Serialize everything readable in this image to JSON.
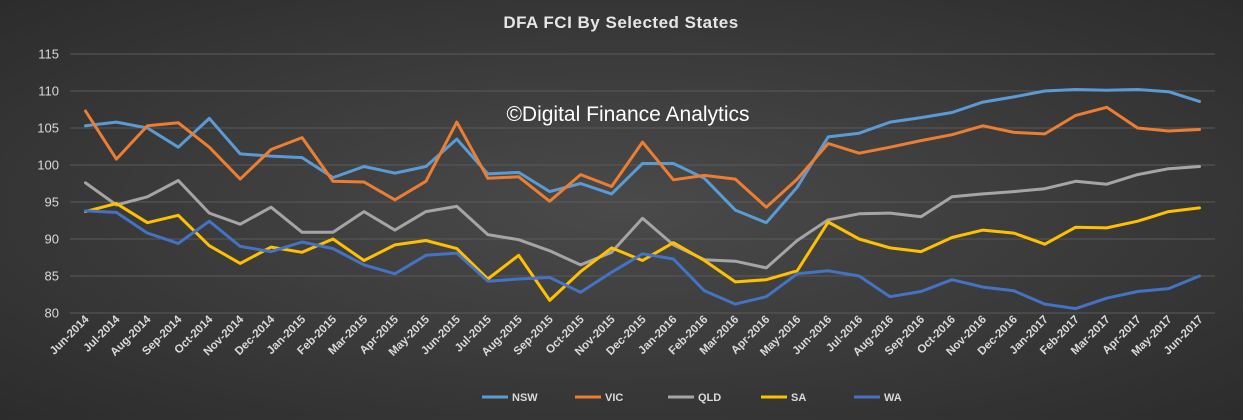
{
  "chart_data": {
    "type": "line",
    "title": "DFA FCI By Selected States",
    "watermark": "©Digital Finance Analytics",
    "xlabel": "",
    "ylabel": "",
    "ylim": [
      80,
      115
    ],
    "yticks": [
      80,
      85,
      90,
      95,
      100,
      105,
      110,
      115
    ],
    "grid": true,
    "legend_position": "bottom",
    "categories": [
      "Jun-2014",
      "Jul-2014",
      "Aug-2014",
      "Sep-2014",
      "Oct-2014",
      "Nov-2014",
      "Dec-2014",
      "Jan-2015",
      "Feb-2015",
      "Mar-2015",
      "Apr-2015",
      "May-2015",
      "Jun-2015",
      "Jul-2015",
      "Aug-2015",
      "Sep-2015",
      "Oct-2015",
      "Nov-2015",
      "Dec-2015",
      "Jan-2016",
      "Feb-2016",
      "Mar-2016",
      "Apr-2016",
      "May-2016",
      "Jun-2016",
      "Jul-2016",
      "Aug-2016",
      "Sep-2016",
      "Oct-2016",
      "Nov-2016",
      "Dec-2016",
      "Jan-2017",
      "Feb-2017",
      "Mar-2017",
      "Apr-2017",
      "May-2017",
      "Jun-2017"
    ],
    "series": [
      {
        "name": "NSW",
        "color": "#5b9bd5",
        "values": [
          105.3,
          105.8,
          105.0,
          102.4,
          106.3,
          101.5,
          101.2,
          101.0,
          98.3,
          99.8,
          98.9,
          99.8,
          103.5,
          98.8,
          99.0,
          96.4,
          97.5,
          96.1,
          100.2,
          100.2,
          98.2,
          93.9,
          92.2,
          97.0,
          103.8,
          104.3,
          105.8,
          106.4,
          107.1,
          108.5,
          109.2,
          110.0,
          110.2,
          110.1,
          110.2,
          109.9,
          108.6
        ]
      },
      {
        "name": "VIC",
        "color": "#ed7d31",
        "values": [
          107.3,
          100.8,
          105.3,
          105.7,
          102.4,
          98.1,
          102.1,
          103.7,
          97.8,
          97.7,
          95.3,
          97.8,
          105.8,
          98.2,
          98.4,
          95.1,
          98.7,
          97.1,
          103.1,
          98.0,
          98.6,
          98.1,
          94.3,
          98.1,
          102.9,
          101.6,
          102.4,
          103.3,
          104.1,
          105.3,
          104.4,
          104.2,
          106.7,
          107.8,
          105.0,
          104.6,
          104.8
        ]
      },
      {
        "name": "QLD",
        "color": "#a5a5a5",
        "values": [
          97.6,
          94.6,
          95.7,
          97.9,
          93.5,
          92.0,
          94.3,
          90.9,
          90.9,
          93.7,
          91.2,
          93.7,
          94.4,
          90.6,
          89.9,
          88.4,
          86.5,
          88.2,
          92.8,
          89.2,
          87.2,
          87.0,
          86.1,
          89.8,
          92.6,
          93.4,
          93.5,
          93.0,
          95.7,
          96.1,
          96.4,
          96.8,
          97.8,
          97.4,
          98.7,
          99.5,
          99.8
        ]
      },
      {
        "name": "SA",
        "color": "#ffc000",
        "values": [
          93.7,
          94.8,
          92.2,
          93.2,
          89.1,
          86.7,
          88.9,
          88.2,
          90.0,
          87.1,
          89.2,
          89.8,
          88.7,
          84.6,
          87.8,
          81.7,
          85.6,
          88.8,
          87.1,
          89.5,
          87.1,
          84.2,
          84.5,
          85.7,
          92.3,
          90.0,
          88.8,
          88.3,
          90.2,
          91.2,
          90.8,
          89.3,
          91.6,
          91.5,
          92.4,
          93.7,
          94.2
        ]
      },
      {
        "name": "WA",
        "color": "#4472c4",
        "values": [
          93.8,
          93.6,
          90.8,
          89.4,
          92.4,
          89.0,
          88.3,
          89.6,
          88.7,
          86.5,
          85.3,
          87.8,
          88.1,
          84.3,
          84.6,
          84.8,
          82.8,
          85.5,
          88.0,
          87.3,
          83.0,
          81.2,
          82.2,
          85.3,
          85.7,
          85.0,
          82.2,
          82.9,
          84.5,
          83.5,
          83.0,
          81.2,
          80.6,
          82.0,
          82.9,
          83.3,
          85.0
        ]
      }
    ]
  }
}
